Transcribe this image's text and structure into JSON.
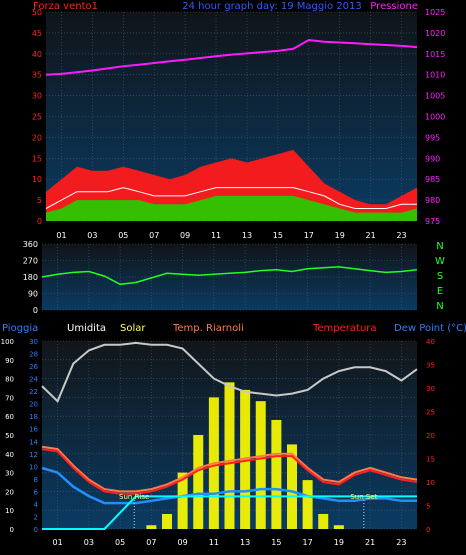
{
  "colors": {
    "background": "#000000",
    "panel_top": "#0a3b63",
    "panel_bottom": "#101418",
    "grid": "#4a5a6a",
    "wind_gust": "#ff1a1a",
    "wind_avg": "#1fd100",
    "wind_line": "#ffffff",
    "pressure": "#ff1aff",
    "direction": "#22ff22",
    "humidity": "#c8c8c8",
    "solar": "#ffff00",
    "temp_felt": "#ff7a4a",
    "temperature": "#ff2020",
    "dew_point": "#2090ff",
    "rain": "#00ffff",
    "title": "#2f5cff",
    "axis_blue_text": "#2f7cff",
    "axis_pink_text": "#ff20ff",
    "axis_red_text": "#ff2020",
    "axis_green_text": "#22ff22",
    "axis_white_text": "#ffffff",
    "yellow_text": "#ffff66"
  },
  "chart_data": [
    {
      "type": "area",
      "title": "24 hour graph day: 19 Maggio 2013",
      "ylabel": "Forza vento1",
      "ylabel2": "Pressione",
      "ylim": [
        0,
        50
      ],
      "ylim2": [
        975,
        1025
      ],
      "yticks": [
        "0",
        "5",
        "10",
        "15",
        "20",
        "25",
        "30",
        "35",
        "40",
        "45",
        "50"
      ],
      "yticks2": [
        "975",
        "980",
        "985",
        "990",
        "995",
        "1000",
        "1005",
        "1010",
        "1015",
        "1020",
        "1025"
      ],
      "xlim": [
        0,
        24
      ],
      "xticks": [
        "01",
        "03",
        "05",
        "07",
        "09",
        "11",
        "13",
        "15",
        "17",
        "19",
        "21",
        "23"
      ],
      "grid": true,
      "x": [
        0,
        1,
        2,
        3,
        4,
        5,
        6,
        7,
        8,
        9,
        10,
        11,
        12,
        13,
        14,
        15,
        16,
        17,
        18,
        19,
        20,
        21,
        22,
        23,
        24
      ],
      "series": [
        {
          "name": "",
          "kind": "gust",
          "values": [
            7,
            10,
            13,
            12,
            12,
            13,
            12,
            11,
            10,
            11,
            13,
            14,
            15,
            14,
            15,
            16,
            17,
            13,
            9,
            7,
            5,
            4,
            4,
            6,
            8
          ]
        },
        {
          "name": "",
          "kind": "average",
          "values": [
            2,
            3,
            5,
            5,
            5,
            5,
            5,
            4,
            4,
            4,
            5,
            6,
            6,
            6,
            6,
            6,
            6,
            5,
            4,
            3,
            2,
            2,
            2,
            2,
            3
          ]
        },
        {
          "name": "",
          "kind": "wind",
          "values": [
            3,
            5,
            7,
            7,
            7,
            8,
            7,
            6,
            6,
            6,
            7,
            8,
            8,
            8,
            8,
            8,
            8,
            7,
            6,
            4,
            3,
            3,
            3,
            4,
            4
          ]
        },
        {
          "name": "Pressione",
          "axis": "right",
          "values": [
            1010.0,
            1010.2,
            1010.6,
            1011.0,
            1011.5,
            1012.0,
            1012.4,
            1012.8,
            1013.2,
            1013.6,
            1014.0,
            1014.4,
            1014.8,
            1015.1,
            1015.4,
            1015.7,
            1016.2,
            1018.3,
            1017.9,
            1017.7,
            1017.5,
            1017.3,
            1017.1,
            1016.9,
            1016.6
          ]
        }
      ]
    },
    {
      "type": "line",
      "ylim": [
        0,
        360
      ],
      "yticks": [
        "0",
        "90",
        "180",
        "270",
        "360"
      ],
      "compass": [
        "N",
        "W",
        "S",
        "E",
        "N"
      ],
      "xlim": [
        0,
        24
      ],
      "grid": true,
      "x": [
        0,
        1,
        2,
        3,
        4,
        5,
        6,
        7,
        8,
        9,
        10,
        11,
        12,
        13,
        14,
        15,
        16,
        17,
        18,
        19,
        20,
        21,
        22,
        23,
        24
      ],
      "series": [
        {
          "name": "",
          "values": [
            180,
            195,
            205,
            210,
            185,
            140,
            150,
            175,
            200,
            195,
            190,
            195,
            200,
            205,
            215,
            220,
            210,
            225,
            230,
            235,
            225,
            215,
            205,
            210,
            220
          ]
        }
      ]
    },
    {
      "type": "line",
      "left_labels": [
        "Pioggia",
        "Umidita",
        "Solar",
        "Temp. Riarnoli"
      ],
      "right_labels": [
        "Temperatura",
        "Dew Point (°C)"
      ],
      "yticks_humidity": [
        "0",
        "10",
        "20",
        "30",
        "40",
        "50",
        "60",
        "70",
        "80",
        "90",
        "100"
      ],
      "yticks_rain": [
        "0",
        "2",
        "4",
        "6",
        "8",
        "10",
        "12",
        "14",
        "16",
        "18",
        "20",
        "22",
        "24",
        "26",
        "28",
        "30"
      ],
      "yticks_temp": [
        "0",
        "5",
        "10",
        "15",
        "20",
        "25",
        "30",
        "35",
        "40"
      ],
      "ylim_humidity": [
        0,
        100
      ],
      "ylim_temp": [
        0,
        40
      ],
      "xlim": [
        0,
        24
      ],
      "xticks": [
        "01",
        "03",
        "05",
        "07",
        "09",
        "11",
        "13",
        "15",
        "17",
        "19",
        "21",
        "23"
      ],
      "annotations": [
        {
          "text": "Sun Rise",
          "x": 5.9
        },
        {
          "text": "Sun Set",
          "x": 20.6
        }
      ],
      "grid": true,
      "x": [
        0,
        1,
        2,
        3,
        4,
        5,
        6,
        7,
        8,
        9,
        10,
        11,
        12,
        13,
        14,
        15,
        16,
        17,
        18,
        19,
        20,
        21,
        22,
        23,
        24
      ],
      "series": [
        {
          "name": "Umidita",
          "values": [
            76,
            68,
            88,
            95,
            98,
            98,
            99,
            98,
            98,
            96,
            88,
            80,
            76,
            73,
            72,
            71,
            72,
            74,
            80,
            84,
            86,
            86,
            84,
            79,
            85
          ]
        },
        {
          "name": "Solar",
          "kind": "bars",
          "values": [
            0,
            0,
            0,
            0,
            0,
            0,
            0,
            2,
            8,
            30,
            50,
            70,
            78,
            74,
            68,
            58,
            45,
            26,
            8,
            2,
            0,
            0,
            0,
            0,
            0
          ]
        },
        {
          "name": "Temp. Riarnoli",
          "axis": "temp",
          "values": [
            17.5,
            17.0,
            13.5,
            10.5,
            8.5,
            8.0,
            8.0,
            8.5,
            9.5,
            11.0,
            13.0,
            14.0,
            14.5,
            15.0,
            15.5,
            16.0,
            16.0,
            13.0,
            10.5,
            10.0,
            12.0,
            13.0,
            12.0,
            11.0,
            10.5
          ]
        },
        {
          "name": "Temperatura",
          "axis": "temp",
          "values": [
            17.0,
            16.5,
            13.0,
            10.0,
            8.0,
            7.5,
            7.5,
            8.0,
            9.0,
            10.5,
            12.5,
            13.5,
            14.0,
            14.5,
            15.0,
            15.5,
            15.5,
            12.5,
            10.0,
            9.5,
            11.5,
            12.5,
            11.5,
            10.5,
            10.0
          ]
        },
        {
          "name": "Dew Point (°C)",
          "axis": "temp",
          "values": [
            13.0,
            12.0,
            9.0,
            7.0,
            5.5,
            5.5,
            5.5,
            6.0,
            6.5,
            7.0,
            7.5,
            7.5,
            8.0,
            8.0,
            8.5,
            8.5,
            8.0,
            7.0,
            6.5,
            6.0,
            6.0,
            6.5,
            6.5,
            6.0,
            6.0
          ]
        },
        {
          "name": "Pioggia",
          "axis": "rain",
          "values": [
            0,
            0,
            0,
            0,
            0,
            2.6,
            5.2,
            5.2,
            5.2,
            5.2,
            5.2,
            5.2,
            5.2,
            5.2,
            5.2,
            5.2,
            5.2,
            5.2,
            5.2,
            5.2,
            5.2,
            5.2,
            5.2,
            5.2,
            5.2
          ]
        }
      ]
    }
  ]
}
